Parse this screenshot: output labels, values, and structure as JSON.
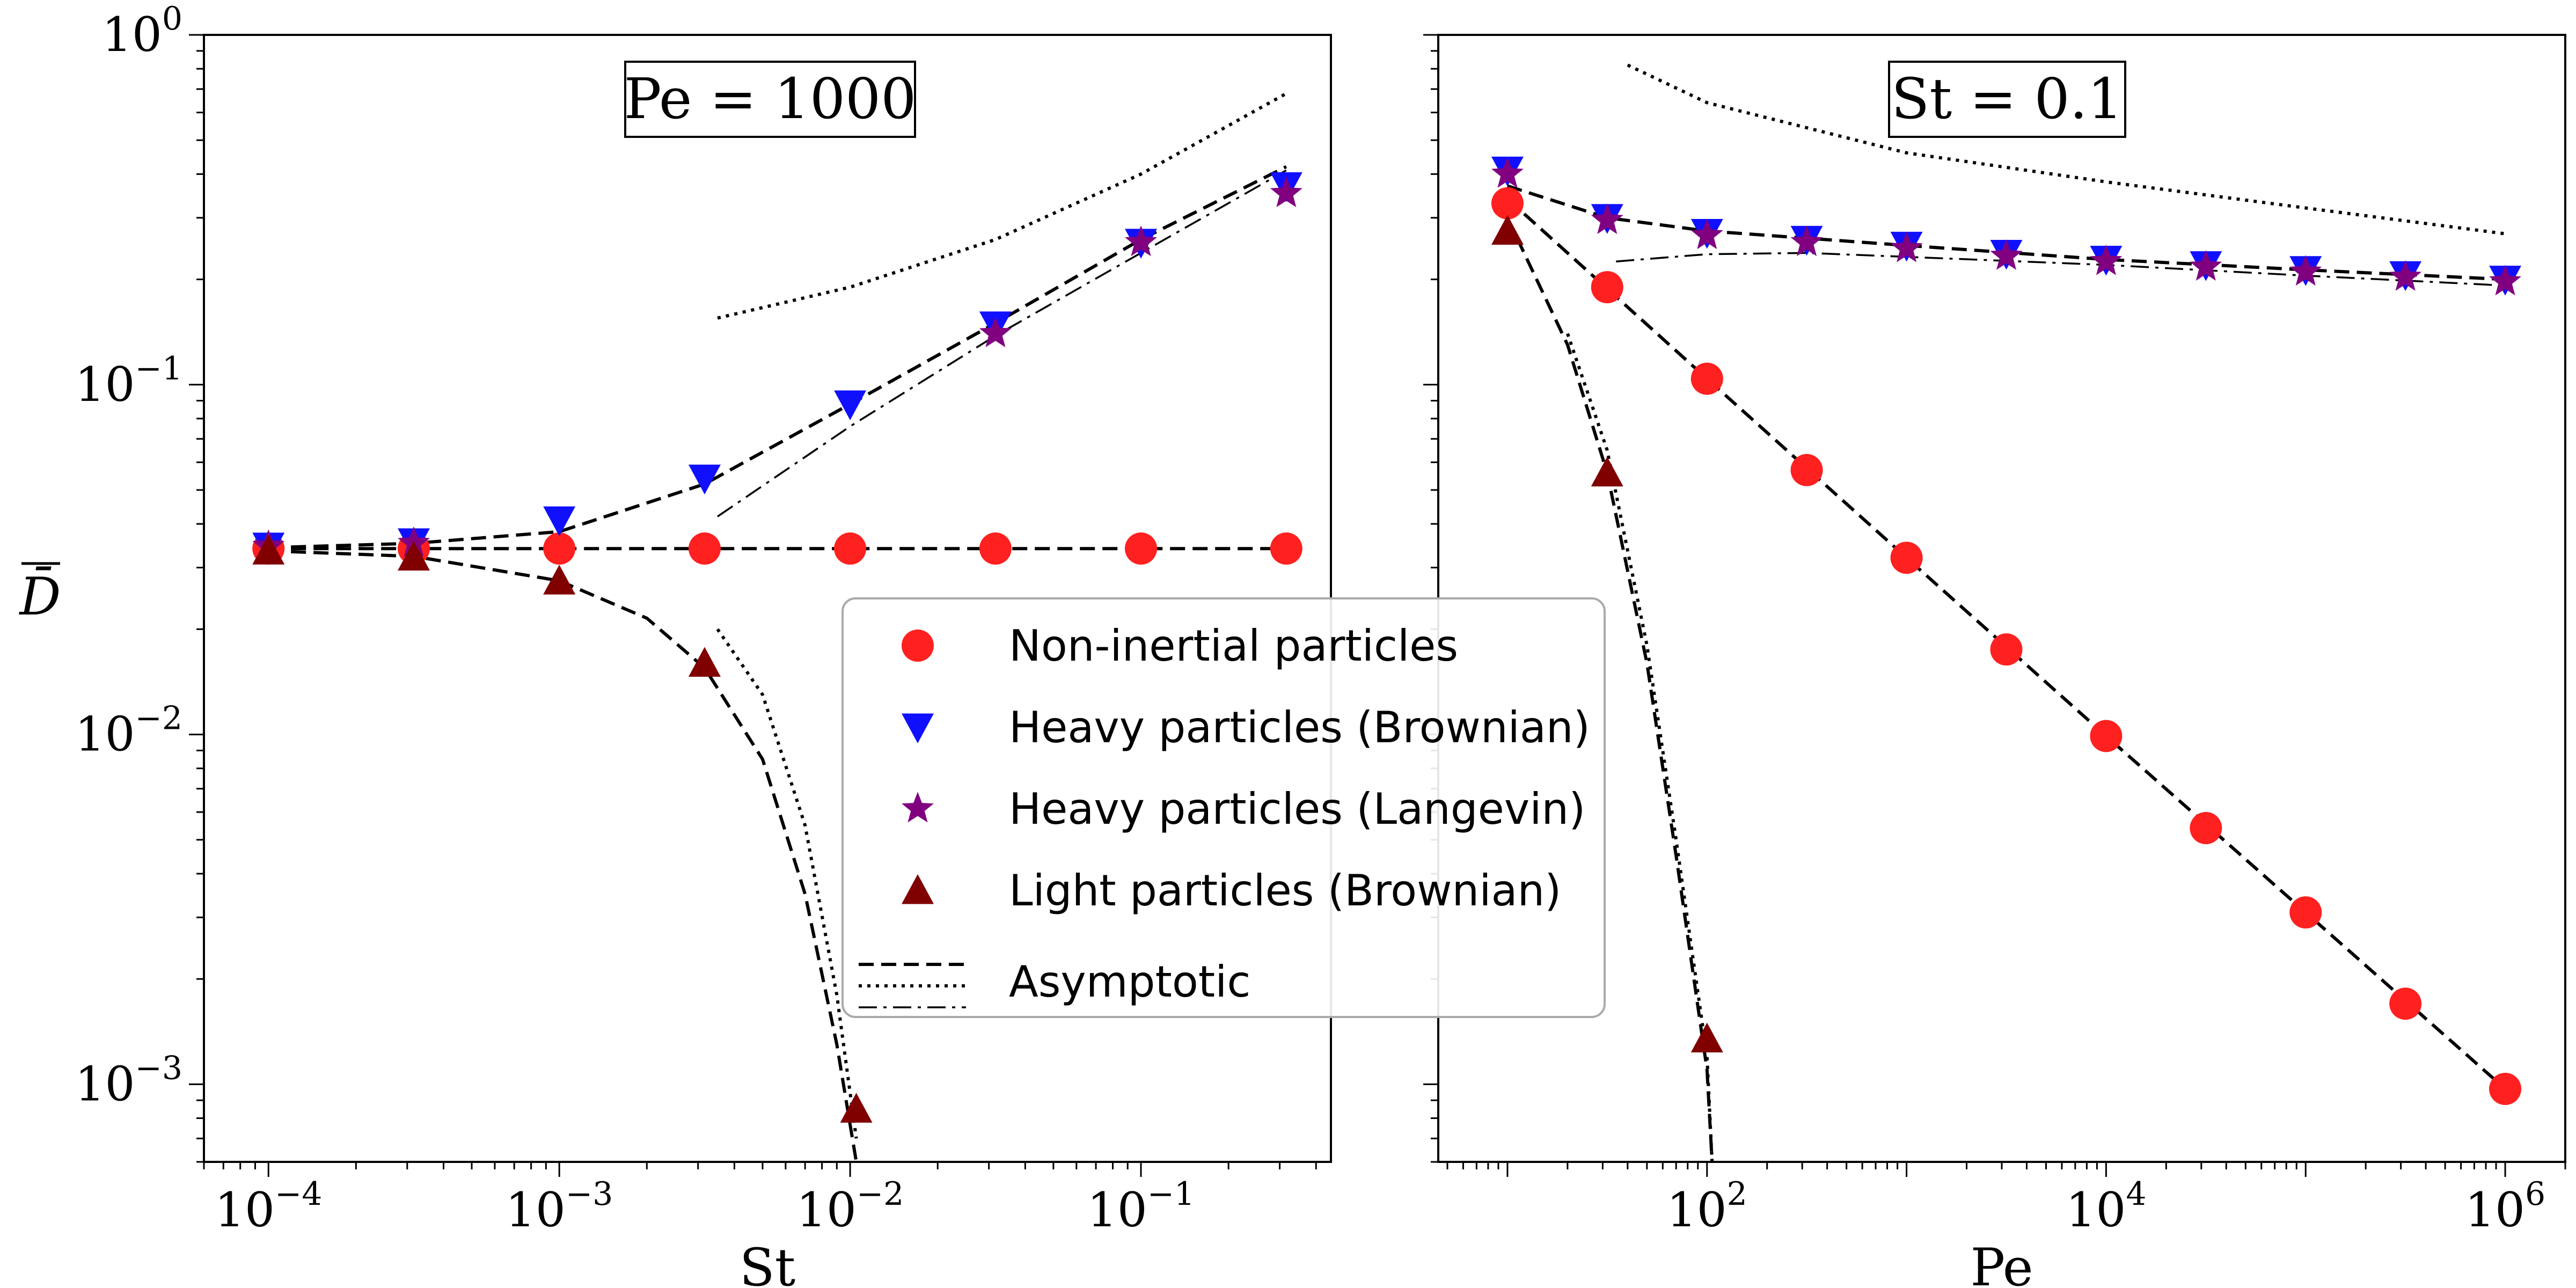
{
  "chart_data": [
    {
      "type": "scatter",
      "panel": "left",
      "title": "Pe = 1000",
      "xlabel": "St",
      "ylabel": "D̄",
      "x_scale": "log",
      "y_scale": "log",
      "xlim": [
        6e-05,
        0.45
      ],
      "ylim": [
        0.0006,
        1.0
      ],
      "x_ticks": [
        {
          "base": "10",
          "exp": "−4",
          "value": 0.0001
        },
        {
          "base": "10",
          "exp": "−3",
          "value": 0.001
        },
        {
          "base": "10",
          "exp": "−2",
          "value": 0.01
        },
        {
          "base": "10",
          "exp": "−1",
          "value": 0.1
        }
      ],
      "y_ticks": [
        {
          "base": "10",
          "exp": "0",
          "value": 1
        },
        {
          "base": "10",
          "exp": "−1",
          "value": 0.1
        },
        {
          "base": "10",
          "exp": "−2",
          "value": 0.01
        },
        {
          "base": "10",
          "exp": "−3",
          "value": 0.001
        }
      ],
      "series": [
        {
          "name": "Non-inertial particles",
          "marker": "circle",
          "color": "#ff2020",
          "points": [
            [
              0.0001,
              0.034
            ],
            [
              0.000316,
              0.034
            ],
            [
              0.001,
              0.034
            ],
            [
              0.00316,
              0.034
            ],
            [
              0.01,
              0.034
            ],
            [
              0.0316,
              0.034
            ],
            [
              0.1,
              0.034
            ],
            [
              0.316,
              0.034
            ]
          ]
        },
        {
          "name": "Heavy particles (Brownian)",
          "marker": "triangle-down",
          "color": "#1010ff",
          "points": [
            [
              0.0001,
              0.0345
            ],
            [
              0.000316,
              0.0355
            ],
            [
              0.001,
              0.041
            ],
            [
              0.00316,
              0.054
            ],
            [
              0.01,
              0.088
            ],
            [
              0.0316,
              0.148
            ],
            [
              0.1,
              0.255
            ],
            [
              0.316,
              0.37
            ]
          ]
        },
        {
          "name": "Heavy particles (Langevin)",
          "marker": "star",
          "color": "#800080",
          "points": [
            [
              0.0001,
              0.0345
            ],
            [
              0.000316,
              0.0352
            ],
            [
              0.0316,
              0.14
            ],
            [
              0.1,
              0.255
            ],
            [
              0.316,
              0.352
            ]
          ]
        },
        {
          "name": "Light particles (Brownian)",
          "marker": "triangle-up",
          "color": "#800000",
          "points": [
            [
              0.0001,
              0.0335
            ],
            [
              0.000316,
              0.0322
            ],
            [
              0.001,
              0.0275
            ],
            [
              0.00316,
              0.016
            ],
            [
              0.0105,
              0.00085
            ]
          ]
        }
      ],
      "lines": [
        {
          "style": "dashed",
          "points": [
            [
              0.0001,
              0.034
            ],
            [
              0.000316,
              0.034
            ],
            [
              0.001,
              0.034
            ],
            [
              0.00316,
              0.034
            ],
            [
              0.01,
              0.034
            ],
            [
              0.0316,
              0.034
            ],
            [
              0.1,
              0.034
            ],
            [
              0.316,
              0.034
            ]
          ]
        },
        {
          "style": "dashed",
          "points": [
            [
              0.0001,
              0.0342
            ],
            [
              0.000316,
              0.0352
            ],
            [
              0.001,
              0.038
            ],
            [
              0.00316,
              0.052
            ],
            [
              0.01,
              0.088
            ],
            [
              0.0316,
              0.15
            ],
            [
              0.1,
              0.26
            ],
            [
              0.316,
              0.42
            ]
          ]
        },
        {
          "style": "dashed",
          "points": [
            [
              0.0001,
              0.0335
            ],
            [
              0.000316,
              0.0323
            ],
            [
              0.001,
              0.0275
            ],
            [
              0.002,
              0.0215
            ],
            [
              0.00316,
              0.0155
            ],
            [
              0.005,
              0.0085
            ],
            [
              0.007,
              0.0035
            ],
            [
              0.009,
              0.0013
            ],
            [
              0.0105,
              0.0006
            ]
          ]
        },
        {
          "style": "dotted",
          "points": [
            [
              0.0035,
              0.155
            ],
            [
              0.01,
              0.19
            ],
            [
              0.0316,
              0.26
            ],
            [
              0.1,
              0.4
            ],
            [
              0.316,
              0.68
            ]
          ]
        },
        {
          "style": "dotted",
          "points": [
            [
              0.0035,
              0.02
            ],
            [
              0.005,
              0.013
            ],
            [
              0.007,
              0.0055
            ],
            [
              0.009,
              0.0018
            ],
            [
              0.0105,
              0.0007
            ]
          ]
        },
        {
          "style": "dashdot",
          "points": [
            [
              0.0035,
              0.042
            ],
            [
              0.01,
              0.076
            ],
            [
              0.0316,
              0.138
            ],
            [
              0.1,
              0.238
            ],
            [
              0.316,
              0.41
            ]
          ]
        }
      ]
    },
    {
      "type": "scatter",
      "panel": "right",
      "title": "St = 0.1",
      "xlabel": "Pe",
      "x_scale": "log",
      "y_scale": "log",
      "xlim": [
        4.5,
        2000000
      ],
      "ylim": [
        0.0006,
        1.0
      ],
      "x_ticks": [
        {
          "base": "10",
          "exp": "2",
          "value": 100
        },
        {
          "base": "10",
          "exp": "4",
          "value": 10000
        },
        {
          "base": "10",
          "exp": "6",
          "value": 1000000
        }
      ],
      "series": [
        {
          "name": "Non-inertial particles",
          "marker": "circle",
          "color": "#ff2020",
          "points": [
            [
              10,
              0.33
            ],
            [
              31.6,
              0.19
            ],
            [
              100,
              0.104
            ],
            [
              316,
              0.057
            ],
            [
              1000,
              0.032
            ],
            [
              3162,
              0.0175
            ],
            [
              10000,
              0.0099
            ],
            [
              31623,
              0.0054
            ],
            [
              100000,
              0.0031
            ],
            [
              316228,
              0.0017
            ],
            [
              1000000,
              0.00097
            ]
          ]
        },
        {
          "name": "Heavy particles (Brownian)",
          "marker": "triangle-down",
          "color": "#1010ff",
          "points": [
            [
              10,
              0.41
            ],
            [
              31.6,
              0.3
            ],
            [
              100,
              0.272
            ],
            [
              316,
              0.26
            ],
            [
              1000,
              0.25
            ],
            [
              3162,
              0.237
            ],
            [
              10000,
              0.228
            ],
            [
              31623,
              0.22
            ],
            [
              100000,
              0.213
            ],
            [
              316228,
              0.206
            ],
            [
              1000000,
              0.2
            ]
          ]
        },
        {
          "name": "Heavy particles (Langevin)",
          "marker": "star",
          "color": "#800080",
          "points": [
            [
              10,
              0.4
            ],
            [
              31.6,
              0.295
            ],
            [
              100,
              0.267
            ],
            [
              316,
              0.255
            ],
            [
              1000,
              0.245
            ],
            [
              3162,
              0.233
            ],
            [
              10000,
              0.225
            ],
            [
              31623,
              0.217
            ],
            [
              100000,
              0.21
            ],
            [
              316228,
              0.203
            ],
            [
              1000000,
              0.197
            ]
          ]
        },
        {
          "name": "Light particles (Brownian)",
          "marker": "triangle-up",
          "color": "#800000",
          "points": [
            [
              10,
              0.275
            ],
            [
              31.6,
              0.056
            ],
            [
              100,
              0.00135
            ]
          ]
        }
      ],
      "lines": [
        {
          "style": "dashed",
          "points": [
            [
              10,
              0.34
            ],
            [
              100,
              0.104
            ],
            [
              1000,
              0.032
            ],
            [
              10000,
              0.0099
            ],
            [
              100000,
              0.0031
            ],
            [
              1000000,
              0.00097
            ]
          ]
        },
        {
          "style": "dashed",
          "points": [
            [
              10,
              0.37
            ],
            [
              31.6,
              0.3
            ],
            [
              100,
              0.275
            ],
            [
              1000,
              0.25
            ],
            [
              10000,
              0.228
            ],
            [
              100000,
              0.213
            ],
            [
              1000000,
              0.2
            ]
          ]
        },
        {
          "style": "dashed",
          "points": [
            [
              10,
              0.3
            ],
            [
              20,
              0.13
            ],
            [
              31.6,
              0.056
            ],
            [
              50,
              0.016
            ],
            [
              70,
              0.0045
            ],
            [
              100,
              0.0011
            ],
            [
              106,
              0.0006
            ]
          ]
        },
        {
          "style": "dotted",
          "points": [
            [
              40,
              0.82
            ],
            [
              100,
              0.64
            ],
            [
              1000,
              0.46
            ],
            [
              10000,
              0.38
            ],
            [
              100000,
              0.32
            ],
            [
              1000000,
              0.27
            ]
          ]
        },
        {
          "style": "dotted",
          "points": [
            [
              20,
              0.14
            ],
            [
              31.6,
              0.065
            ],
            [
              50,
              0.018
            ],
            [
              70,
              0.005
            ],
            [
              100,
              0.0012
            ],
            [
              106,
              0.0006
            ]
          ]
        },
        {
          "style": "dashdot",
          "points": [
            [
              35,
              0.225
            ],
            [
              100,
              0.236
            ],
            [
              316,
              0.238
            ],
            [
              1000,
              0.232
            ],
            [
              10000,
              0.22
            ],
            [
              100000,
              0.205
            ],
            [
              1000000,
              0.192
            ]
          ]
        }
      ]
    }
  ],
  "legend": {
    "placement": "center",
    "entries": [
      {
        "label": "Non-inertial particles",
        "kind": "marker",
        "marker": "circle",
        "color": "#ff2020"
      },
      {
        "label": "Heavy particles (Brownian)",
        "kind": "marker",
        "marker": "triangle-down",
        "color": "#1010ff"
      },
      {
        "label": "Heavy particles (Langevin)",
        "kind": "marker",
        "marker": "star",
        "color": "#800080"
      },
      {
        "label": "Light particles (Brownian)",
        "kind": "marker",
        "marker": "triangle-up",
        "color": "#800000"
      }
    ],
    "asymptotic_label": "Asymptotic",
    "asymptotic_styles": [
      "dashed",
      "dotted",
      "dashdot"
    ]
  }
}
